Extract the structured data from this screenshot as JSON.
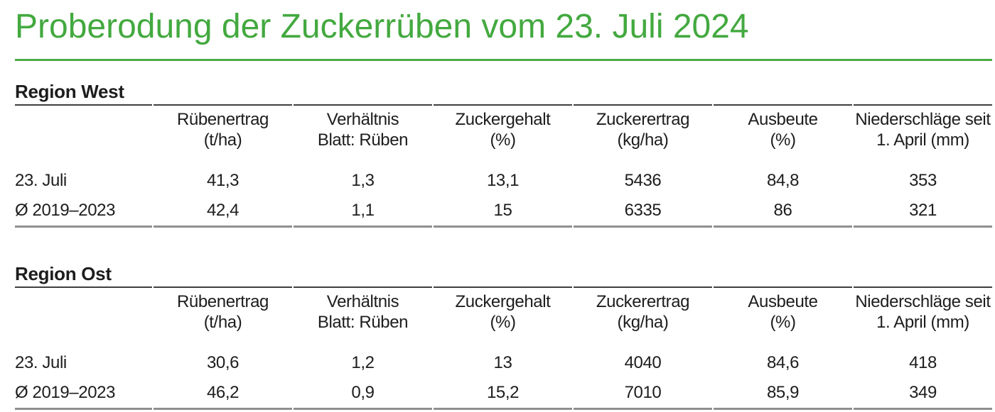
{
  "page": {
    "title": "Proberodung der Zuckerrüben vom 23. Juli 2024"
  },
  "colors": {
    "accent_green": "#43a93f",
    "header_rule_dark": "#3e3e3e",
    "bottom_rule_gray": "#8f8f8f",
    "text": "#1d1d1d"
  },
  "table_columns": [
    {
      "line1": "Rübenertrag",
      "line2": "(t/ha)"
    },
    {
      "line1": "Verhältnis",
      "line2": "Blatt: Rüben"
    },
    {
      "line1": "Zuckergehalt",
      "line2": "(%)"
    },
    {
      "line1": "Zuckerertrag",
      "line2": "(kg/ha)"
    },
    {
      "line1": "Ausbeute",
      "line2": "(%)"
    },
    {
      "line1": "Niederschläge seit",
      "line2": "1. April (mm)"
    }
  ],
  "sections": [
    {
      "heading": "Region West",
      "rows": [
        {
          "label": "23. Juli",
          "values": [
            "41,3",
            "1,3",
            "13,1",
            "5436",
            "84,8",
            "353"
          ]
        },
        {
          "label": "Ø 2019–2023",
          "values": [
            "42,4",
            "1,1",
            "15",
            "6335",
            "86",
            "321"
          ]
        }
      ]
    },
    {
      "heading": "Region Ost",
      "rows": [
        {
          "label": "23. Juli",
          "values": [
            "30,6",
            "1,2",
            "13",
            "4040",
            "84,6",
            "418"
          ]
        },
        {
          "label": "Ø 2019–2023",
          "values": [
            "46,2",
            "0,9",
            "15,2",
            "7010",
            "85,9",
            "349"
          ]
        }
      ]
    }
  ]
}
